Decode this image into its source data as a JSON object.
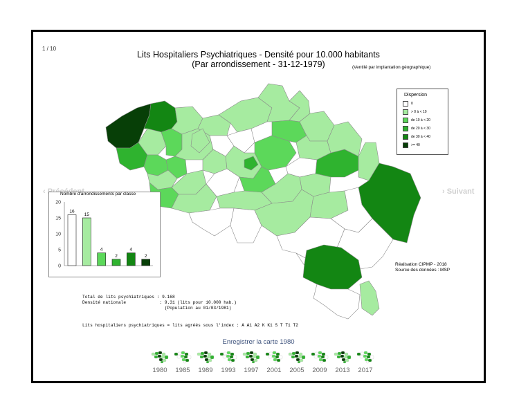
{
  "page_counter": "1 / 10",
  "title": {
    "line1": "Lits Hospitaliers Psychiatriques  - Densité pour 10.000 habitants",
    "line2": "(Par arrondissement - 31-12-1979)",
    "note": "(Ventilé par implantation géographique)"
  },
  "nav": {
    "prev": "‹ Précédent",
    "next": "› Suivant"
  },
  "legend": {
    "title": "Dispersion",
    "items": [
      {
        "label": "0",
        "color": "#ffffff"
      },
      {
        "label": "> 0 à < 10",
        "color": "#a6eba0"
      },
      {
        "label": "de 10 à < 20",
        "color": "#5cd85a"
      },
      {
        "label": "de 20 à < 30",
        "color": "#2fb32f"
      },
      {
        "label": "de 30 à < 40",
        "color": "#138613"
      },
      {
        "label": ">= 40",
        "color": "#073f07"
      }
    ]
  },
  "credit": {
    "line1": "Réalisation CIPMP - 2018",
    "line2": "Source des données : MSP"
  },
  "histogram": {
    "title": "Nombre d'arrondissements par classe",
    "chart_data": {
      "type": "bar",
      "categories": [
        "0",
        "> 0 à < 10",
        "de 10 à < 20",
        "de 20 à < 30",
        "de 30 à < 40",
        ">= 40"
      ],
      "values": [
        16,
        15,
        4,
        2,
        4,
        2
      ],
      "yticks": [
        "0",
        "5",
        "10",
        "15",
        "20"
      ],
      "ylim": [
        0,
        20
      ],
      "colors": [
        "#ffffff",
        "#a6eba0",
        "#5cd85a",
        "#2fb32f",
        "#138613",
        "#073f07"
      ]
    }
  },
  "stats": {
    "line1": "Total de lits psychiatriques : 9.168",
    "line2": "Densité nationale             : 9.31 (lits pour 10.000 hab.)",
    "line3": "                                (Population au 01/03/1981)",
    "line4": "Lits hospitaliers psychiatriques = lits agréés sous l'index : A A1 A2 K K1 S T T1 T2"
  },
  "save_link": "Enregistrer la carte 1980",
  "years": [
    "1980",
    "1985",
    "1989",
    "1993",
    "1997",
    "2001",
    "2005",
    "2009",
    "2013",
    "2017"
  ]
}
